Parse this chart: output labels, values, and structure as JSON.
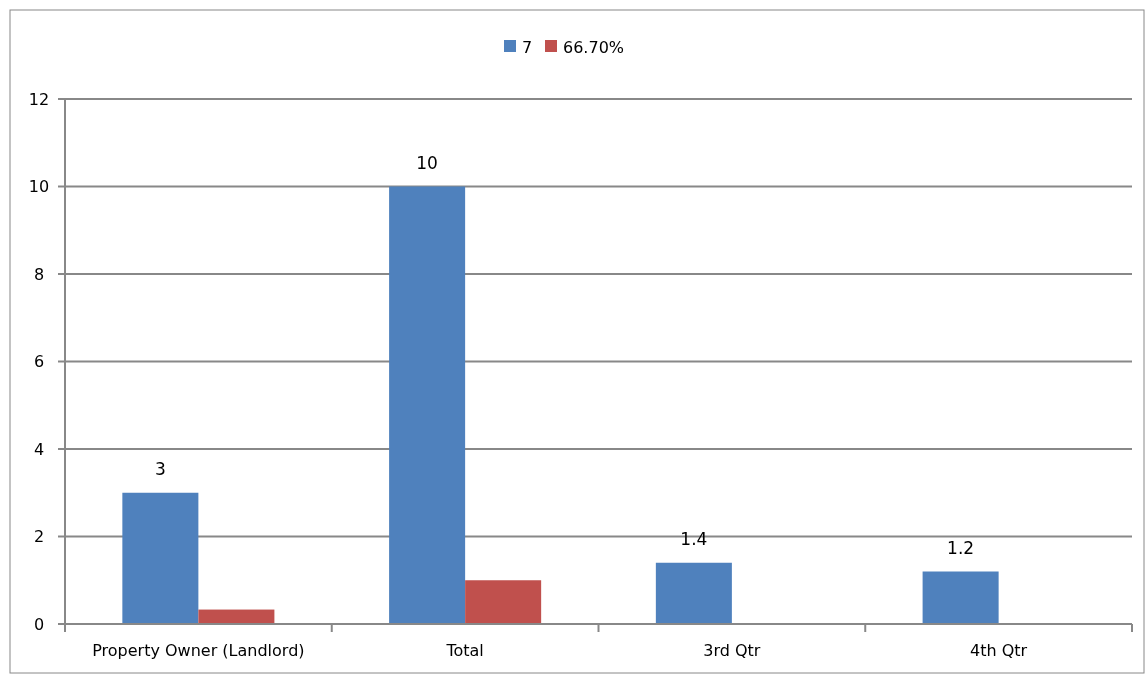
{
  "chart_data": {
    "type": "bar",
    "categories": [
      "Property Owner (Landlord)",
      "Total",
      "3rd Qtr",
      "4th Qtr"
    ],
    "series": [
      {
        "name": "7",
        "color": "#4f81bd",
        "values": [
          3,
          10,
          1.4,
          1.2
        ],
        "value_labels": [
          "3",
          "10",
          "1.4",
          "1.2"
        ]
      },
      {
        "name": "66.70%",
        "color": "#c0504d",
        "values": [
          0.33,
          1,
          null,
          null
        ]
      }
    ],
    "ylim": [
      0,
      12
    ],
    "yticks": [
      0,
      2,
      4,
      6,
      8,
      10,
      12
    ],
    "grid": "y",
    "legend": "top"
  }
}
